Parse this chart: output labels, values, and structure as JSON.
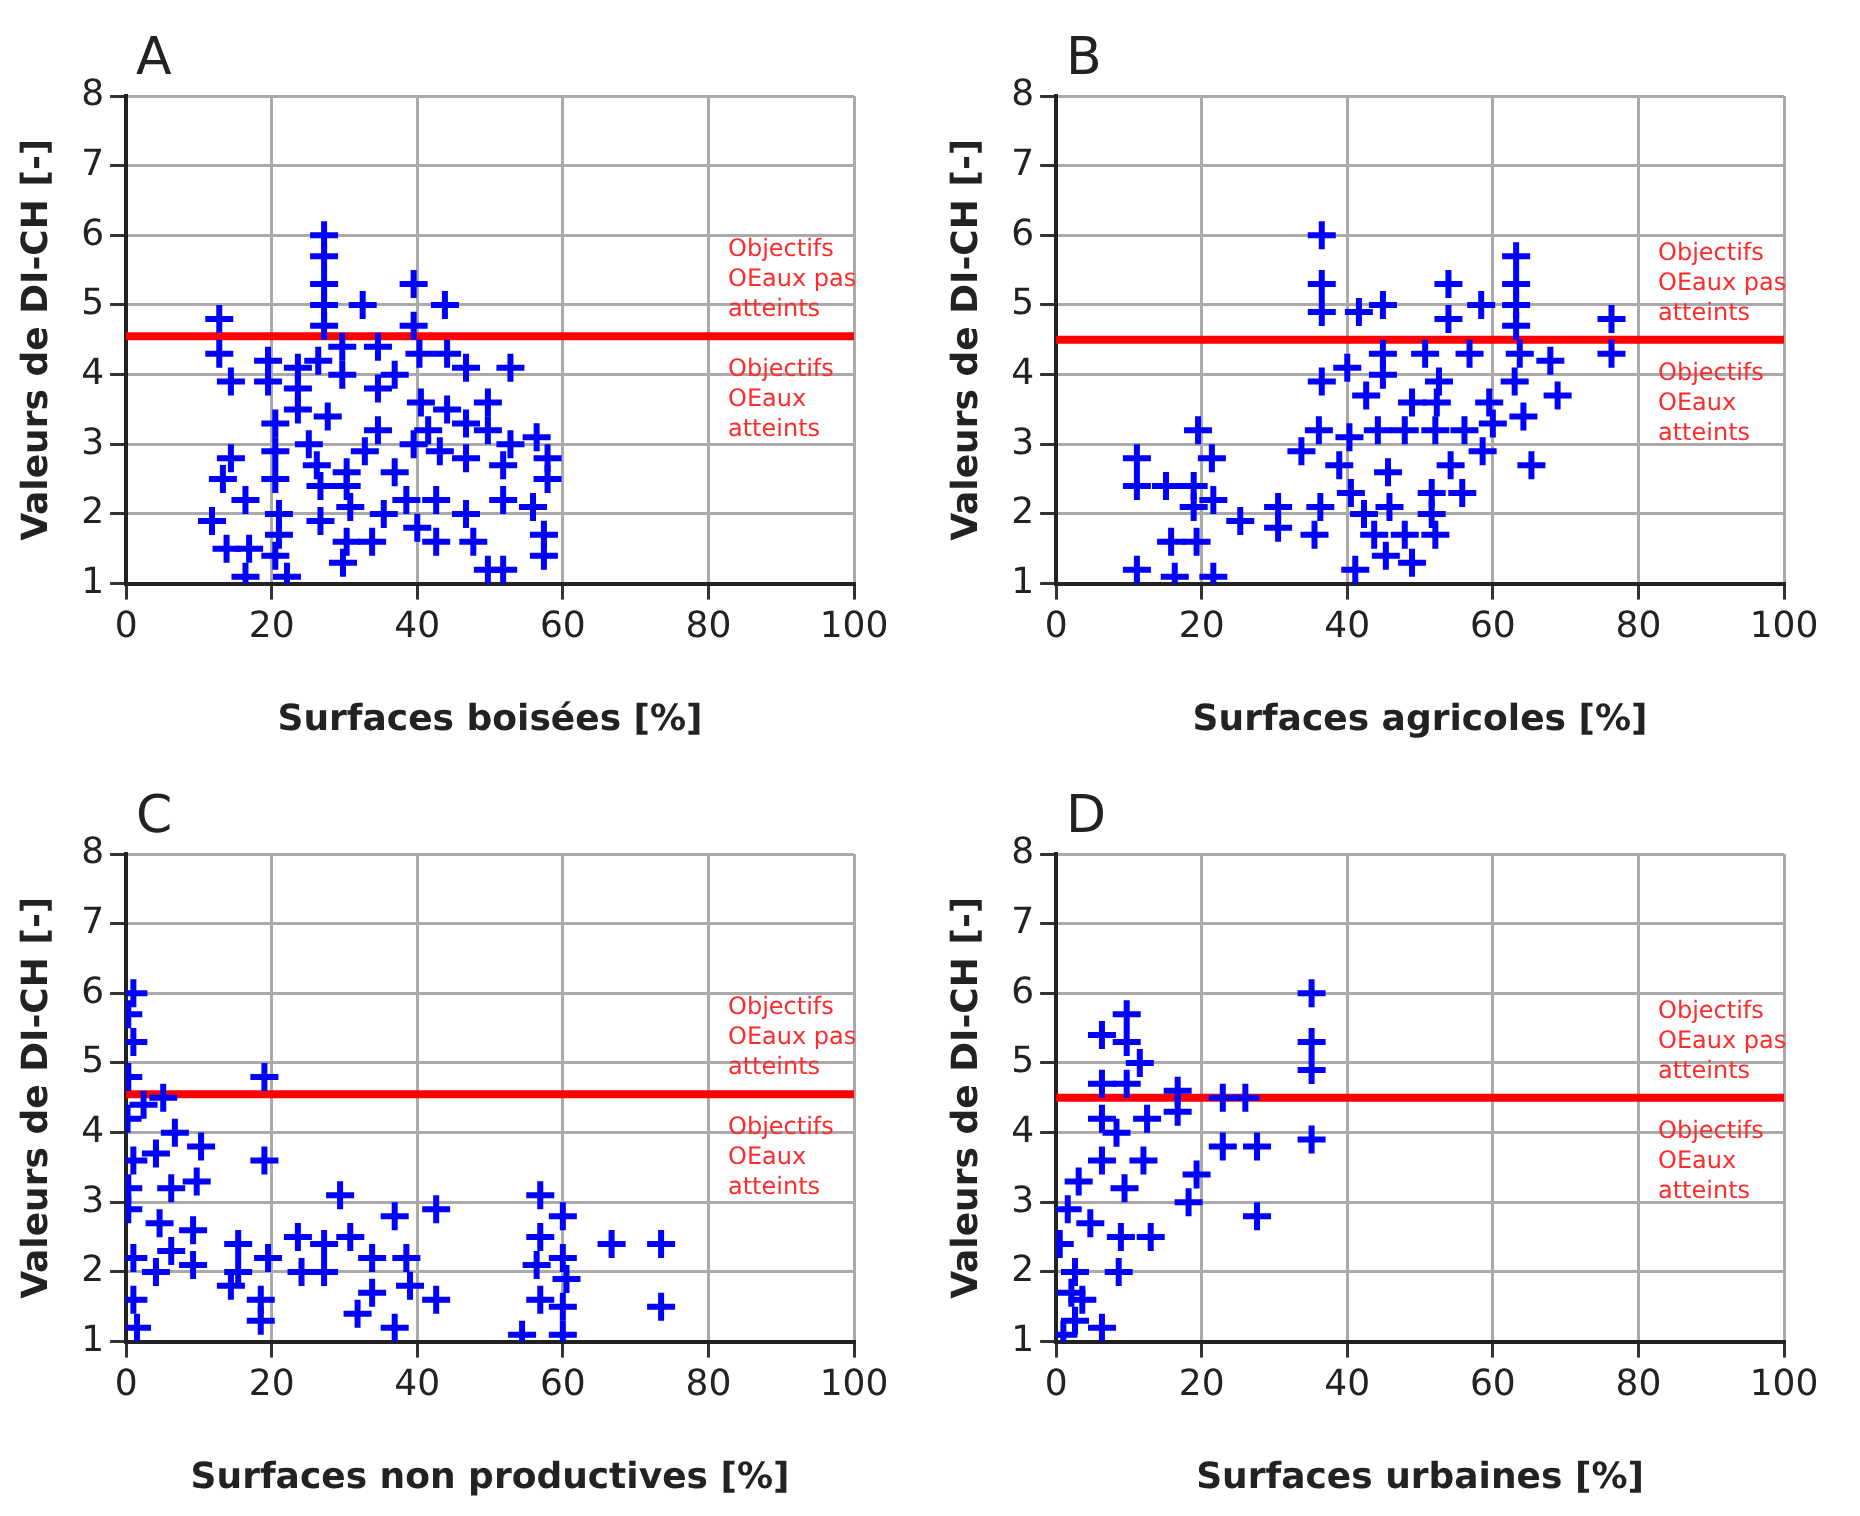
{
  "chart_data": [
    {
      "type": "scatter",
      "title": "A",
      "xlabel": "Surfaces boisées [%]",
      "ylabel": "Valeurs de DI-CH [-]",
      "color": "#0000ff",
      "marker": "cross",
      "grid": true,
      "xlim": [
        0,
        100
      ],
      "ylim": [
        1,
        8
      ],
      "xticks": [
        0,
        20,
        40,
        60,
        80,
        100
      ],
      "yticks": [
        1,
        2,
        3,
        4,
        5,
        6,
        7,
        8
      ],
      "ref_lines": [
        {
          "axis": "y",
          "value": 4.55,
          "color": "#ff0000"
        }
      ],
      "annotations": [
        "Objectifs OEaux pas atteints",
        "Objectifs OEaux atteints"
      ],
      "x": [
        27.2,
        27.2,
        27.2,
        39.5,
        32.5,
        43.8,
        27.2,
        12.8,
        39.5,
        27.2,
        12.8,
        19.5,
        23.6,
        26.4,
        29.7,
        34.6,
        40.3,
        44.1,
        46.7,
        52.8,
        14.4,
        19.5,
        23.6,
        29.7,
        36.9,
        34.6,
        40.5,
        44.1,
        49.7,
        23.6,
        27.7,
        20.5,
        34.6,
        41.5,
        46.7,
        49.7,
        52.8,
        56.4,
        14.4,
        20.5,
        25.1,
        32.8,
        39.5,
        43.1,
        46.7,
        51.8,
        57.9,
        13.3,
        20.5,
        26.2,
        30.3,
        36.9,
        57.9,
        16.4,
        26.7,
        30.3,
        38.5,
        42.6,
        51.8,
        55.9,
        11.8,
        21.0,
        26.7,
        30.8,
        35.4,
        46.7,
        40.0,
        13.8,
        16.9,
        21.0,
        30.3,
        33.8,
        42.6,
        47.7,
        57.4,
        16.4,
        20.5,
        22.1,
        29.8,
        49.7,
        51.8,
        57.4
      ],
      "values": [
        6.0,
        5.7,
        5.3,
        5.3,
        5.0,
        5.0,
        5.0,
        4.8,
        4.7,
        4.7,
        4.3,
        4.2,
        4.1,
        4.2,
        4.4,
        4.4,
        4.3,
        4.3,
        4.1,
        4.1,
        3.9,
        3.9,
        3.8,
        4.0,
        4.0,
        3.8,
        3.6,
        3.5,
        3.6,
        3.5,
        3.4,
        3.3,
        3.2,
        3.2,
        3.3,
        3.2,
        3.0,
        3.1,
        2.8,
        2.9,
        3.0,
        2.9,
        3.0,
        2.9,
        2.8,
        2.7,
        2.8,
        2.5,
        2.5,
        2.7,
        2.6,
        2.6,
        2.5,
        2.2,
        2.4,
        2.4,
        2.2,
        2.2,
        2.2,
        2.1,
        1.9,
        2.0,
        1.9,
        2.1,
        2.0,
        2.0,
        1.8,
        1.5,
        1.5,
        1.7,
        1.6,
        1.6,
        1.6,
        1.6,
        1.7,
        1.1,
        1.4,
        1.1,
        1.3,
        1.2,
        1.2,
        1.4
      ]
    },
    {
      "type": "scatter",
      "title": "B",
      "xlabel": "Surfaces agricoles [%]",
      "ylabel": "Valeurs de DI-CH [-]",
      "color": "#0000ff",
      "marker": "cross",
      "grid": true,
      "xlim": [
        0,
        100
      ],
      "ylim": [
        1,
        8
      ],
      "xticks": [
        0,
        20,
        40,
        60,
        80,
        100
      ],
      "yticks": [
        1,
        2,
        3,
        4,
        5,
        6,
        7,
        8
      ],
      "ref_lines": [
        {
          "axis": "y",
          "value": 4.5,
          "color": "#ff0000"
        }
      ],
      "annotations": [
        "Objectifs OEaux pas atteints",
        "Objectifs OEaux atteints"
      ],
      "x": [
        36.5,
        63.2,
        53.9,
        36.5,
        63.2,
        44.9,
        41.6,
        36.5,
        58.4,
        63.2,
        53.9,
        76.3,
        63.2,
        44.9,
        50.7,
        56.8,
        63.7,
        67.9,
        76.3,
        36.5,
        40.0,
        44.9,
        52.6,
        63.0,
        68.9,
        42.6,
        48.9,
        52.3,
        59.5,
        64.2,
        36.1,
        40.3,
        44.2,
        47.9,
        52.1,
        56.1,
        60.0,
        33.7,
        38.9,
        45.6,
        54.2,
        58.6,
        65.3,
        19.5,
        11.1,
        21.4,
        11.1,
        15.1,
        18.9,
        21.6,
        18.9,
        25.3,
        30.5,
        36.3,
        40.5,
        45.8,
        51.6,
        55.8,
        30.5,
        35.5,
        42.3,
        51.6,
        43.7,
        47.9,
        52.1,
        11.1,
        15.8,
        19.3,
        16.3,
        21.6,
        41.1,
        45.3,
        48.9
      ],
      "values": [
        6.0,
        5.7,
        5.3,
        5.3,
        5.3,
        5.0,
        4.9,
        4.9,
        5.0,
        5.0,
        4.8,
        4.8,
        4.7,
        4.3,
        4.3,
        4.3,
        4.3,
        4.2,
        4.3,
        3.9,
        4.1,
        4.0,
        3.9,
        3.9,
        3.7,
        3.7,
        3.6,
        3.6,
        3.6,
        3.4,
        3.2,
        3.1,
        3.2,
        3.2,
        3.2,
        3.2,
        3.3,
        2.9,
        2.7,
        2.6,
        2.7,
        2.9,
        2.7,
        3.2,
        2.8,
        2.8,
        2.4,
        2.4,
        2.4,
        2.2,
        2.1,
        1.9,
        2.1,
        2.1,
        2.3,
        2.1,
        2.3,
        2.3,
        1.8,
        1.7,
        2.0,
        2.0,
        1.7,
        1.7,
        1.7,
        1.2,
        1.6,
        1.6,
        1.1,
        1.1,
        1.2,
        1.4,
        1.3
      ]
    },
    {
      "type": "scatter",
      "title": "C",
      "xlabel": "Surfaces non productives [%]",
      "ylabel": "Valeurs de DI-CH [-]",
      "color": "#0000ff",
      "marker": "cross",
      "grid": true,
      "xlim": [
        0,
        100
      ],
      "ylim": [
        1,
        8
      ],
      "xticks": [
        0,
        20,
        40,
        60,
        80,
        100
      ],
      "yticks": [
        1,
        2,
        3,
        4,
        5,
        6,
        7,
        8
      ],
      "ref_lines": [
        {
          "axis": "y",
          "value": 4.55,
          "color": "#ff0000"
        }
      ],
      "annotations": [
        "Objectifs OEaux pas atteints",
        "Objectifs OEaux atteints"
      ],
      "x": [
        1.0,
        0.3,
        1.0,
        0.3,
        19.0,
        2.4,
        5.1,
        0.2,
        6.7,
        10.3,
        4.1,
        1.0,
        19.0,
        0.3,
        6.2,
        9.7,
        29.4,
        4.6,
        0.3,
        9.2,
        36.9,
        42.6,
        56.9,
        60.0,
        1.0,
        6.2,
        9.2,
        4.1,
        15.4,
        15.4,
        19.5,
        23.6,
        27.2,
        24.1,
        27.2,
        30.8,
        33.8,
        38.5,
        39.0,
        33.8,
        31.8,
        36.9,
        42.6,
        56.9,
        60.0,
        56.4,
        60.5,
        56.9,
        60.0,
        54.4,
        60.0,
        66.7,
        73.5,
        73.5,
        18.5,
        18.5,
        14.4,
        1.0,
        1.5
      ],
      "values": [
        6.0,
        5.7,
        5.3,
        4.8,
        4.8,
        4.4,
        4.5,
        4.2,
        4.0,
        3.8,
        3.7,
        3.6,
        3.6,
        3.2,
        3.2,
        3.3,
        3.1,
        2.7,
        2.9,
        2.6,
        2.8,
        2.9,
        3.1,
        2.8,
        2.2,
        2.3,
        2.1,
        2.0,
        2.4,
        2.0,
        2.2,
        2.5,
        2.4,
        2.0,
        2.0,
        2.5,
        2.2,
        2.2,
        1.8,
        1.7,
        1.4,
        1.2,
        1.6,
        2.5,
        2.2,
        2.1,
        1.9,
        1.6,
        1.5,
        1.1,
        1.1,
        2.4,
        2.4,
        1.5,
        1.6,
        1.3,
        1.8,
        1.6,
        1.2
      ]
    },
    {
      "type": "scatter",
      "title": "D",
      "xlabel": "Surfaces urbaines [%]",
      "ylabel": "Valeurs de DI-CH [-]",
      "color": "#0000ff",
      "marker": "cross",
      "grid": true,
      "xlim": [
        0,
        100
      ],
      "ylim": [
        1,
        8
      ],
      "xticks": [
        0,
        20,
        40,
        60,
        80,
        100
      ],
      "yticks": [
        1,
        2,
        3,
        4,
        5,
        6,
        7,
        8
      ],
      "ref_lines": [
        {
          "axis": "y",
          "value": 4.5,
          "color": "#ff0000"
        }
      ],
      "annotations": [
        "Objectifs OEaux pas atteints",
        "Objectifs OEaux atteints"
      ],
      "x": [
        35.1,
        35.1,
        35.1,
        35.1,
        9.7,
        6.3,
        9.7,
        11.5,
        6.3,
        9.7,
        16.7,
        22.9,
        26.0,
        6.3,
        12.5,
        16.7,
        8.3,
        22.9,
        27.6,
        6.3,
        12.0,
        19.3,
        9.4,
        3.1,
        18.2,
        27.6,
        4.7,
        8.9,
        13.0,
        1.6,
        2.6,
        8.6,
        3.6,
        2.6,
        6.3,
        1.0,
        0.5,
        2.1
      ],
      "values": [
        6.0,
        5.3,
        4.9,
        3.9,
        5.7,
        5.4,
        5.3,
        5.0,
        4.7,
        4.7,
        4.6,
        4.5,
        4.5,
        4.2,
        4.2,
        4.3,
        4.0,
        3.8,
        3.8,
        3.6,
        3.6,
        3.4,
        3.2,
        3.3,
        3.0,
        2.8,
        2.7,
        2.5,
        2.5,
        2.9,
        2.0,
        2.0,
        1.6,
        1.3,
        1.2,
        1.1,
        2.4,
        1.7
      ]
    }
  ]
}
